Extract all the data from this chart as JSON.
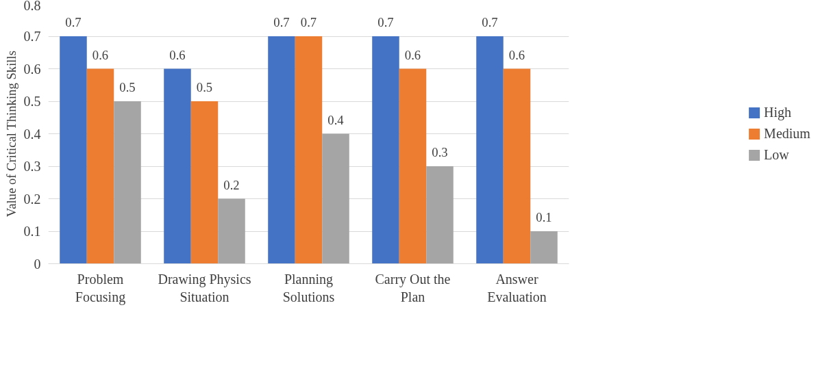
{
  "chart_data": {
    "type": "bar",
    "ylabel": "Value of Critical Thinking Skills",
    "categories": [
      "Problem Focusing",
      "Drawing Physics Situation",
      "Planning Solutions",
      "Carry Out the Plan",
      "Answer Evaluation"
    ],
    "series": [
      {
        "name": "High",
        "color": "#4472c4",
        "values": [
          0.7,
          0.6,
          0.7,
          0.7,
          0.7
        ]
      },
      {
        "name": "Medium",
        "color": "#ed7d31",
        "values": [
          0.6,
          0.5,
          0.7,
          0.6,
          0.6
        ]
      },
      {
        "name": "Low",
        "color": "#a5a5a5",
        "values": [
          0.5,
          0.2,
          0.4,
          0.3,
          0.1
        ]
      }
    ],
    "ylim": [
      0,
      0.8
    ],
    "yticks": [
      0,
      0.1,
      0.2,
      0.3,
      0.4,
      0.5,
      0.6,
      0.7,
      0.8
    ],
    "grid": "y",
    "legend": "right",
    "data_labels": true
  }
}
